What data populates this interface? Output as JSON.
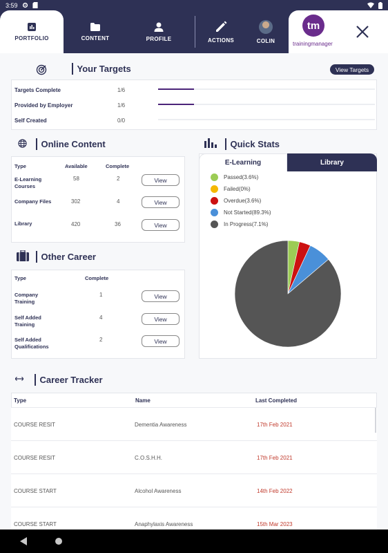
{
  "status_bar": {
    "time": "3:59"
  },
  "nav": {
    "tabs": [
      {
        "label": "PORTFOLIO",
        "icon": "bar-chart-icon"
      },
      {
        "label": "CONTENT",
        "icon": "folder-icon"
      },
      {
        "label": "PROFILE",
        "icon": "person-icon"
      },
      {
        "label": "ACTIONS",
        "icon": "pencil-icon"
      },
      {
        "label": "COLIN",
        "icon": "avatar"
      }
    ],
    "brand_logo": "tm",
    "brand_text": "trainingmanager"
  },
  "targets": {
    "title": "Your Targets",
    "button": "View Targets",
    "rows": [
      {
        "label": "Targets Complete",
        "value": "1/6",
        "progress": 0.167
      },
      {
        "label": "Provided by Employer",
        "value": "1/6",
        "progress": 0.167
      },
      {
        "label": "Self Created",
        "value": "0/0",
        "progress": 0
      }
    ]
  },
  "online_content": {
    "title": "Online Content",
    "headers": {
      "type": "Type",
      "available": "Available",
      "complete": "Complete"
    },
    "rows": [
      {
        "type_line1": "E-Learning",
        "type_line2": "Courses",
        "available": "58",
        "complete": "2",
        "action": "View"
      },
      {
        "type_line1": "Company Files",
        "type_line2": "",
        "available": "302",
        "complete": "4",
        "action": "View"
      },
      {
        "type_line1": "Library",
        "type_line2": "",
        "available": "420",
        "complete": "36",
        "action": "View"
      }
    ]
  },
  "other_career": {
    "title": "Other Career",
    "headers": {
      "type": "Type",
      "complete": "Complete"
    },
    "rows": [
      {
        "type_line1": "Company",
        "type_line2": "Training",
        "complete": "1",
        "action": "View"
      },
      {
        "type_line1": "Self Added",
        "type_line2": "Training",
        "complete": "4",
        "action": "View"
      },
      {
        "type_line1": "Self Added",
        "type_line2": "Qualifications",
        "complete": "2",
        "action": "View"
      }
    ]
  },
  "quick_stats": {
    "title": "Quick Stats",
    "tabs": [
      {
        "label": "E-Learning"
      },
      {
        "label": "Library"
      }
    ],
    "legend": [
      {
        "label": "Passed(3.6%)",
        "color": "#9ccc55"
      },
      {
        "label": "Failed(0%)",
        "color": "#f5b800"
      },
      {
        "label": "Overdue(3.6%)",
        "color": "#cc1111"
      },
      {
        "label": "Not Started(89.3%)",
        "color": "#4a90d9"
      },
      {
        "label": "In Progress(7.1%)",
        "color": "#555555"
      }
    ]
  },
  "chart_data": {
    "type": "pie",
    "categories": [
      "Passed",
      "Failed",
      "Overdue",
      "Not Started",
      "In Progress"
    ],
    "values": [
      3.6,
      0,
      3.6,
      89.3,
      7.1
    ],
    "colors": [
      "#9ccc55",
      "#f5b800",
      "#cc1111",
      "#4a90d9",
      "#555555"
    ]
  },
  "career_tracker": {
    "title": "Career Tracker",
    "headers": {
      "type": "Type",
      "name": "Name",
      "last_completed": "Last Completed"
    },
    "rows": [
      {
        "type": "COURSE RESIT",
        "name": "Dementia Awareness",
        "date": "17th Feb 2021"
      },
      {
        "type": "COURSE RESIT",
        "name": "C.O.S.H.H.",
        "date": "17th Feb 2021"
      },
      {
        "type": "COURSE START",
        "name": "Alcohol Awareness",
        "date": "14th Feb 2022"
      },
      {
        "type": "COURSE START",
        "name": "Anaphylaxis Awareness",
        "date": "15th Mar 2023"
      }
    ]
  }
}
